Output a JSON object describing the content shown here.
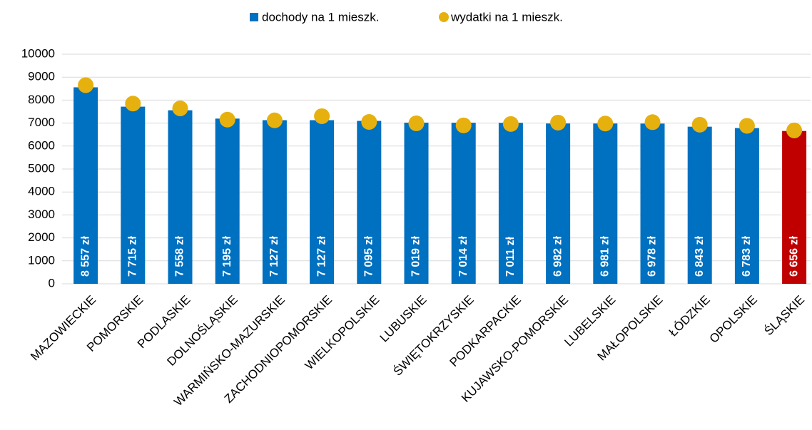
{
  "chart_data": {
    "type": "bar",
    "categories": [
      "MAZOWIECKIE",
      "POMORSKIE",
      "PODLASKIE",
      "DOLNOŚLĄSKIE",
      "WARMIŃSKO-MAZURSKIE",
      "ZACHODNIOPOMORSKIE",
      "WIELKOPOLSKIE",
      "LUBUSKIE",
      "ŚWIĘTOKRZYSKIE",
      "PODKARPACKIE",
      "KUJAWSKO-POMORSKIE",
      "LUBELSKIE",
      "MAŁOPOLSKIE",
      "ŁÓDZKIE",
      "OPOLSKIE",
      "ŚLĄSKIE"
    ],
    "series": [
      {
        "name": "dochody na 1 mieszk.",
        "type": "bar",
        "color": "#0070c0",
        "colors": [
          "#0070c0",
          "#0070c0",
          "#0070c0",
          "#0070c0",
          "#0070c0",
          "#0070c0",
          "#0070c0",
          "#0070c0",
          "#0070c0",
          "#0070c0",
          "#0070c0",
          "#0070c0",
          "#0070c0",
          "#0070c0",
          "#0070c0",
          "#c00000"
        ],
        "values": [
          8557,
          7715,
          7558,
          7195,
          7127,
          7127,
          7095,
          7019,
          7014,
          7011,
          6982,
          6981,
          6978,
          6843,
          6783,
          6656
        ],
        "value_labels": [
          "8 557 zł",
          "7 715 zł",
          "7 558 zł",
          "7 195 zł",
          "7 127 zł",
          "7 127 zł",
          "7 095 zł",
          "7 019 zł",
          "7 014 zł",
          "7 011 zł",
          "6 982 zł",
          "6 981 zł",
          "6 978 zł",
          "6 843 zł",
          "6 783 zł",
          "6 656 zł"
        ]
      },
      {
        "name": "wydatki na 1 mieszk.",
        "type": "scatter",
        "color": "#e6b10e",
        "values": [
          8650,
          7850,
          7640,
          7150,
          7120,
          7300,
          7050,
          6990,
          6900,
          6960,
          7020,
          6980,
          7040,
          6930,
          6880,
          6680
        ]
      }
    ],
    "ylim": [
      0,
      10000
    ],
    "yticks": [
      0,
      1000,
      2000,
      3000,
      4000,
      5000,
      6000,
      7000,
      8000,
      9000,
      10000
    ],
    "grid": true,
    "legend": "top"
  }
}
